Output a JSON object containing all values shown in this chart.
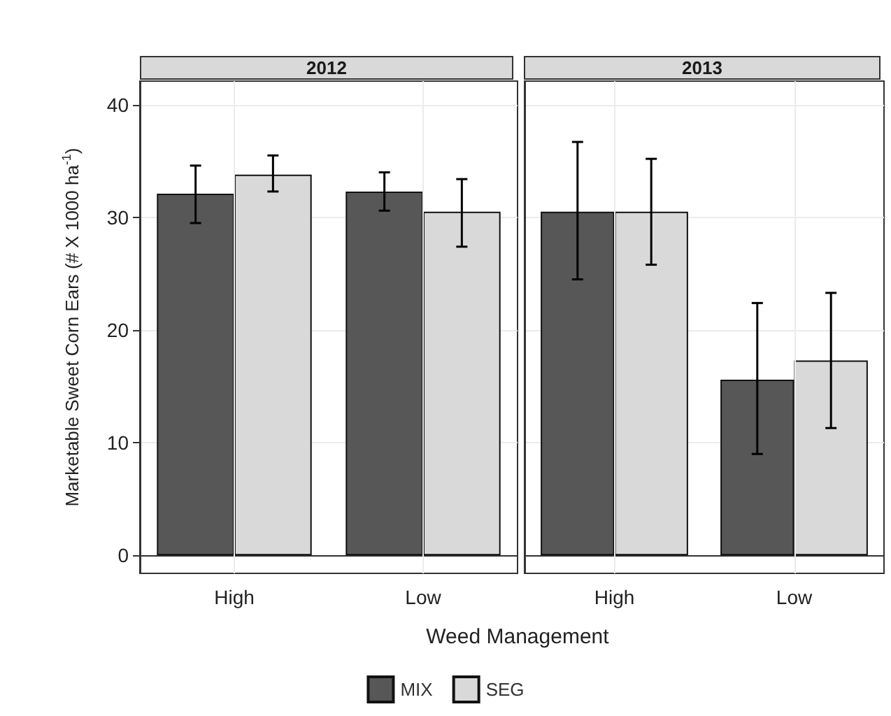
{
  "chart_data": [
    {
      "type": "bar",
      "title": "2012",
      "ylabel": "Marketable Sweet Corn Ears (# X 1000 ha$^{-1}$)",
      "xlabel": "Weed Management",
      "categories": [
        "High",
        "Low"
      ],
      "series": [
        {
          "name": "MIX",
          "color": "#575757",
          "values": [
            32.1,
            32.3
          ],
          "errors": [
            [
              29.5,
              34.6
            ],
            [
              30.6,
              34.0
            ]
          ]
        },
        {
          "name": "SEG",
          "color": "#d9d9d9",
          "values": [
            33.8,
            30.5
          ],
          "errors": [
            [
              32.3,
              35.5
            ],
            [
              27.4,
              33.4
            ]
          ]
        }
      ],
      "ylim": [
        -1.6,
        42.1
      ],
      "yticks": [
        0,
        10,
        20,
        30,
        40
      ],
      "grid": true,
      "legend": "bottom"
    },
    {
      "type": "bar",
      "title": "2013",
      "categories": [
        "High",
        "Low"
      ],
      "series": [
        {
          "color": "#575757",
          "values": [
            30.5,
            15.6
          ],
          "errors": [
            [
              24.5,
              36.7
            ],
            [
              9.0,
              22.4
            ]
          ]
        },
        {
          "color": "#d9d9d9",
          "values": [
            30.5,
            17.3
          ],
          "errors": [
            [
              25.8,
              35.2
            ],
            [
              11.3,
              23.3
            ]
          ]
        }
      ],
      "ylim": [
        -1.6,
        42.1
      ],
      "yticks": [
        0,
        10,
        20,
        30,
        40
      ],
      "grid": true,
      "tick_labels": "x"
    }
  ]
}
